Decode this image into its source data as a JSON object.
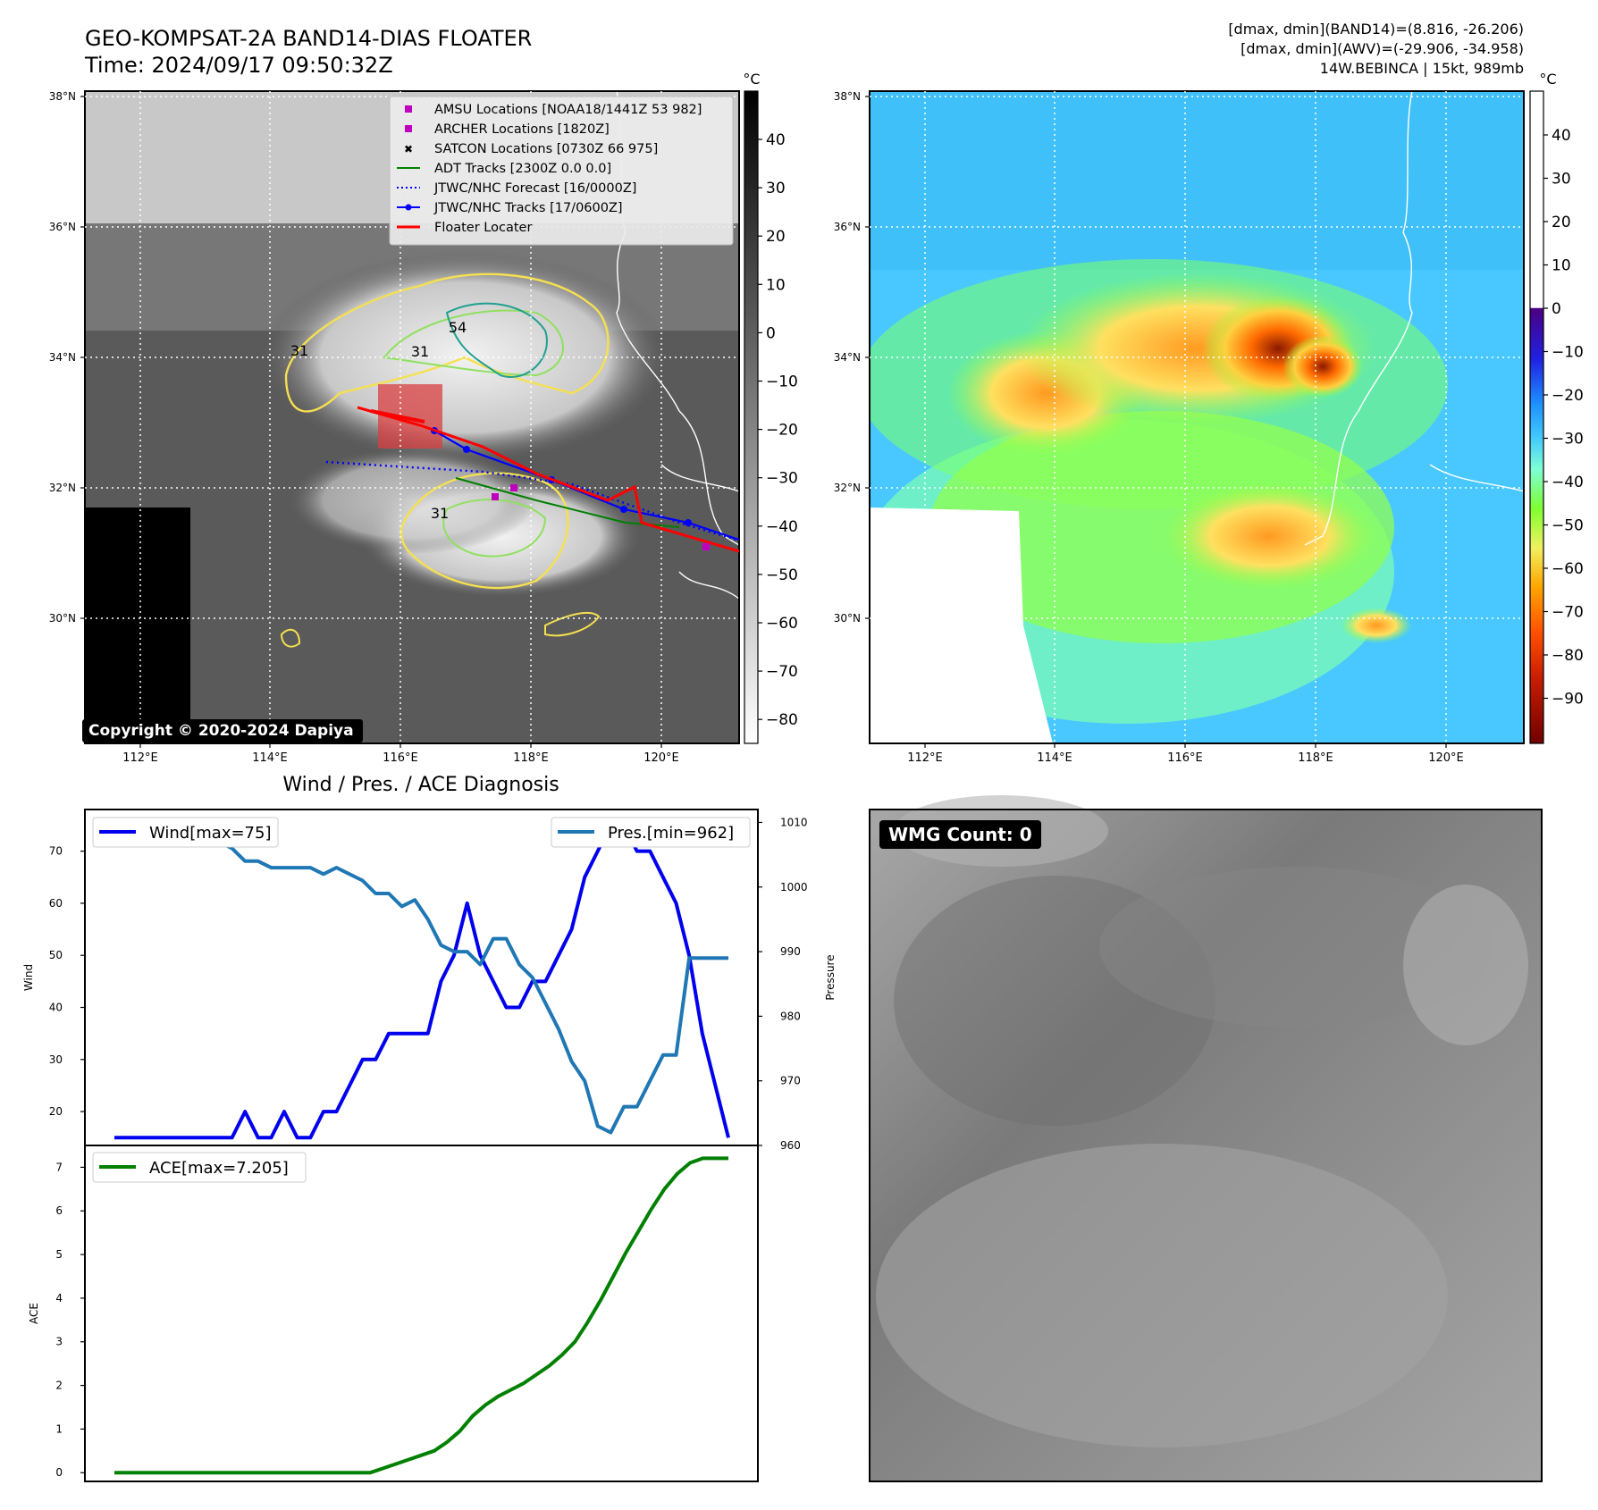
{
  "header": {
    "title_line1": "GEO-KOMPSAT-2A BAND14-DIAS FLOATER",
    "title_line2": "Time: 2024/09/17 09:50:32Z",
    "right_line1": "[dmax, dmin](BAND14)=(8.816, -26.206)",
    "right_line2": "[dmax, dmin](AWV)=(-29.906, -34.958)",
    "right_line3": "14W.BEBINCA | 15kt, 989mb"
  },
  "maps": {
    "lat_ticks": [
      "38°N",
      "36°N",
      "34°N",
      "32°N",
      "30°N"
    ],
    "lon_ticks": [
      "112°E",
      "114°E",
      "116°E",
      "118°E",
      "120°E"
    ],
    "colorbar_unit": "°C",
    "ir_colorbar_ticks": [
      "40",
      "30",
      "20",
      "10",
      "0",
      "−10",
      "−20",
      "−30",
      "−40",
      "−50",
      "−60",
      "−70",
      "−80"
    ],
    "awv_colorbar_ticks": [
      "40",
      "30",
      "20",
      "10",
      "0",
      "−10",
      "−20",
      "−30",
      "−40",
      "−50",
      "−60",
      "−70",
      "−80",
      "−90"
    ],
    "contour_labels": [
      "54",
      "31",
      "31",
      "31"
    ],
    "copyright": "Copyright © 2020-2024 Dapiya",
    "legend": [
      {
        "label": "AMSU Locations [NOAA18/1441Z 53 982]",
        "color": "#c000c0",
        "marker": "square"
      },
      {
        "label": "ARCHER Locations [1820Z]",
        "color": "#c000c0",
        "marker": "square"
      },
      {
        "label": "SATCON Locations [0730Z 66 975]",
        "color": "#00b0b0",
        "marker": "x"
      },
      {
        "label": "ADT Tracks [2300Z 0.0 0.0]",
        "color": "#008000",
        "marker": "line"
      },
      {
        "label": "JTWC/NHC Forecast [16/0000Z]",
        "color": "#0000ff",
        "marker": "dotted"
      },
      {
        "label": "JTWC/NHC Tracks [17/0600Z]",
        "color": "#0000ff",
        "marker": "line-dot"
      },
      {
        "label": "Floater Locater",
        "color": "#ff0000",
        "marker": "line"
      }
    ]
  },
  "chart_data": [
    {
      "type": "line",
      "title": "Wind / Pres. / ACE Diagnosis",
      "ylabel": "Wind",
      "y2label": "Pressure",
      "ylim": [
        13.5,
        78
      ],
      "y2lim": [
        960,
        1012
      ],
      "yticks": [
        20,
        30,
        40,
        50,
        60,
        70
      ],
      "y2ticks": [
        960,
        970,
        980,
        990,
        1000,
        1010
      ],
      "series": [
        {
          "name": "Wind[max=75]",
          "color": "#0000ee",
          "axis": "left",
          "values": [
            15,
            15,
            15,
            15,
            15,
            15,
            15,
            15,
            15,
            15,
            20,
            15,
            15,
            20,
            15,
            15,
            20,
            20,
            25,
            30,
            30,
            35,
            35,
            35,
            35,
            45,
            50,
            60,
            50,
            45,
            40,
            40,
            45,
            45,
            50,
            55,
            65,
            70,
            75,
            75,
            70,
            70,
            65,
            60,
            50,
            35,
            25,
            15
          ]
        },
        {
          "name": "Pres.[min=962]",
          "color": "#1f77b4",
          "axis": "right",
          "values": [
            1010,
            1008,
            1008,
            1008,
            1008,
            1009,
            1009,
            1007,
            1007,
            1006,
            1004,
            1004,
            1003,
            1003,
            1003,
            1003,
            1002,
            1003,
            1002,
            1001,
            999,
            999,
            997,
            998,
            995,
            991,
            990,
            990,
            988,
            992,
            992,
            988,
            986,
            982,
            978,
            973,
            970,
            963,
            962,
            966,
            966,
            970,
            974,
            974,
            989,
            989,
            989,
            989
          ]
        }
      ]
    },
    {
      "type": "line",
      "ylabel": "ACE",
      "ylim": [
        -0.2,
        7.5
      ],
      "yticks": [
        0,
        1,
        2,
        3,
        4,
        5,
        6,
        7
      ],
      "series": [
        {
          "name": "ACE[max=7.205]",
          "color": "#008000",
          "values": [
            0,
            0,
            0,
            0,
            0,
            0,
            0,
            0,
            0,
            0,
            0,
            0,
            0,
            0,
            0,
            0,
            0,
            0,
            0,
            0,
            0,
            0.1,
            0.2,
            0.3,
            0.4,
            0.5,
            0.7,
            0.95,
            1.3,
            1.55,
            1.75,
            1.9,
            2.05,
            2.25,
            2.45,
            2.7,
            3.0,
            3.45,
            3.95,
            4.5,
            5.05,
            5.55,
            6.05,
            6.5,
            6.85,
            7.1,
            7.205,
            7.205,
            7.205
          ]
        }
      ]
    }
  ],
  "wmg": {
    "label": "WMG Count: 0"
  }
}
